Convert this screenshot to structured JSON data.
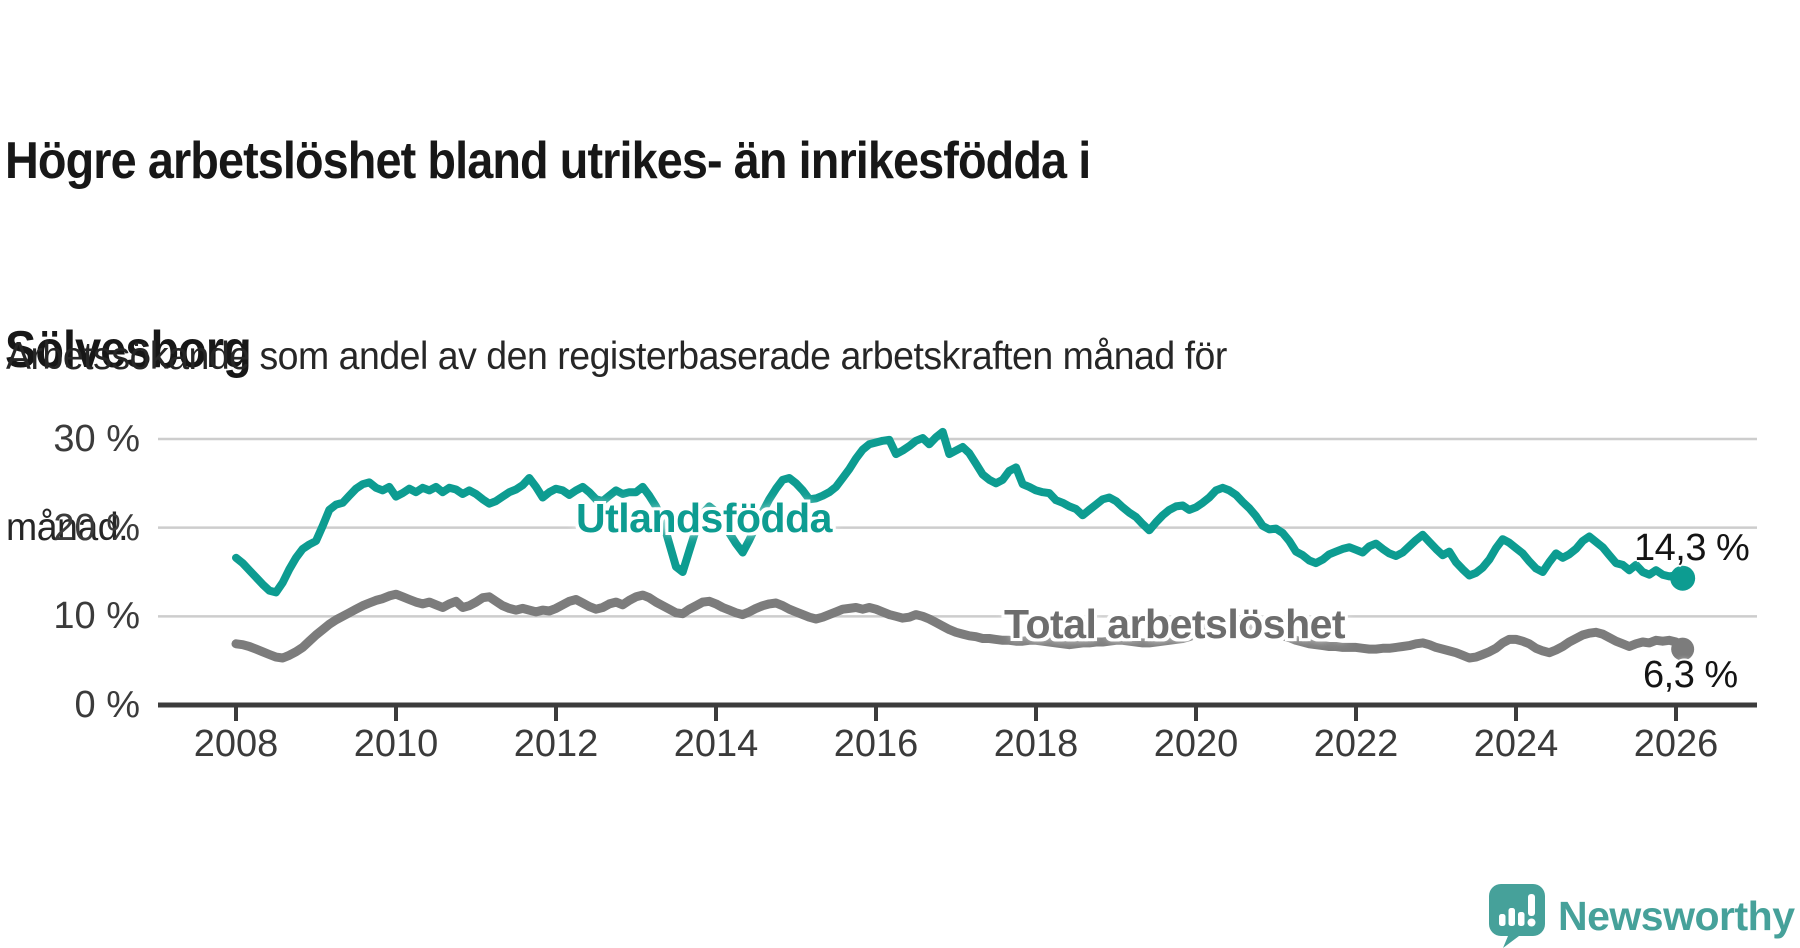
{
  "title_lines": [
    "Högre arbetslöshet bland utrikes- än inrikesfödda i",
    "Sölvesborg"
  ],
  "subtitle_lines": [
    "Arbetssökande som andel av den registerbaserade arbetskraften månad för",
    "månad."
  ],
  "branding": {
    "name": "Newsworthy",
    "color": "#46a19a",
    "icon": "speech-bubble-bar-chart-logo"
  },
  "colors": {
    "foreign_born_line": "#0d9c91",
    "total_line": "#7c7c7c",
    "total_label": "#6d6d6d",
    "grid": "#cdcdcd",
    "axis": "#3c3c3c",
    "text": "#171717"
  },
  "chart_data": {
    "type": "line",
    "title": "Högre arbetslöshet bland utrikes- än inrikesfödda i Sölvesborg",
    "subtitle": "Arbetssökande som andel av den registerbaserade arbetskraften månad för månad.",
    "x_unit": "month",
    "x_start": "2008-01",
    "x_end": "2026-02",
    "ylim": [
      0,
      32
    ],
    "grid": true,
    "legend": "inline-labels",
    "y_ticks": [
      {
        "value": 0,
        "label": "0 %"
      },
      {
        "value": 10,
        "label": "10 %"
      },
      {
        "value": 20,
        "label": "20 %"
      },
      {
        "value": 30,
        "label": "30 %"
      }
    ],
    "x_ticks": [
      {
        "value": 2008,
        "label": "2008"
      },
      {
        "value": 2010,
        "label": "2010"
      },
      {
        "value": 2012,
        "label": "2012"
      },
      {
        "value": 2014,
        "label": "2014"
      },
      {
        "value": 2016,
        "label": "2016"
      },
      {
        "value": 2018,
        "label": "2018"
      },
      {
        "value": 2020,
        "label": "2020"
      },
      {
        "value": 2022,
        "label": "2022"
      },
      {
        "value": 2024,
        "label": "2024"
      },
      {
        "value": 2026,
        "label": "2026"
      }
    ],
    "series": [
      {
        "name": "Utlandsfödda",
        "color": "#0d9c91",
        "end_label": "14,3 %",
        "end_value": 14.3,
        "values": [
          16.6,
          16.0,
          15.2,
          14.4,
          13.6,
          12.9,
          12.7,
          13.8,
          15.3,
          16.6,
          17.6,
          18.1,
          18.5,
          20.2,
          22.0,
          22.6,
          22.8,
          23.6,
          24.4,
          24.9,
          25.1,
          24.5,
          24.2,
          24.6,
          23.5,
          23.9,
          24.4,
          24.0,
          24.5,
          24.2,
          24.6,
          24.0,
          24.5,
          24.3,
          23.8,
          24.2,
          23.8,
          23.2,
          22.7,
          23.0,
          23.5,
          24.0,
          24.3,
          24.8,
          25.6,
          24.6,
          23.4,
          24.0,
          24.4,
          24.2,
          23.7,
          24.2,
          24.6,
          24.0,
          23.2,
          23.0,
          23.6,
          24.2,
          23.8,
          24.0,
          24.0,
          24.6,
          23.6,
          22.4,
          20.8,
          18.2,
          15.6,
          15.0,
          17.4,
          19.8,
          21.6,
          22.4,
          21.8,
          20.6,
          19.4,
          18.2,
          17.2,
          18.6,
          20.2,
          21.8,
          23.2,
          24.4,
          25.4,
          25.6,
          25.0,
          24.2,
          23.2,
          23.3,
          23.6,
          24.0,
          24.6,
          25.6,
          26.6,
          27.8,
          28.8,
          29.4,
          29.6,
          29.8,
          29.9,
          28.3,
          28.7,
          29.2,
          29.8,
          30.1,
          29.4,
          30.2,
          30.8,
          28.3,
          28.7,
          29.1,
          28.4,
          27.2,
          26.0,
          25.4,
          25.0,
          25.4,
          26.4,
          26.8,
          24.9,
          24.6,
          24.2,
          24.0,
          23.9,
          23.1,
          22.8,
          22.4,
          22.1,
          21.4,
          22.0,
          22.6,
          23.2,
          23.4,
          23.0,
          22.3,
          21.7,
          21.2,
          20.4,
          19.7,
          20.6,
          21.4,
          22.0,
          22.4,
          22.5,
          22.0,
          22.3,
          22.8,
          23.4,
          24.2,
          24.5,
          24.2,
          23.7,
          22.9,
          22.2,
          21.3,
          20.2,
          19.8,
          19.9,
          19.4,
          18.5,
          17.3,
          16.9,
          16.3,
          16.0,
          16.4,
          17.0,
          17.3,
          17.6,
          17.8,
          17.5,
          17.2,
          17.9,
          18.2,
          17.6,
          17.1,
          16.8,
          17.2,
          17.9,
          18.6,
          19.2,
          18.4,
          17.6,
          16.9,
          17.3,
          16.1,
          15.3,
          14.6,
          14.9,
          15.5,
          16.4,
          17.7,
          18.7,
          18.3,
          17.7,
          17.1,
          16.2,
          15.4,
          15.0,
          16.1,
          17.1,
          16.6,
          17.0,
          17.6,
          18.5,
          19.0,
          18.4,
          17.8,
          16.9,
          16.0,
          15.8,
          15.2,
          15.8,
          15.0,
          14.7,
          15.2,
          14.7,
          14.5,
          14.6,
          14.3
        ]
      },
      {
        "name": "Total arbetslöshet",
        "color": "#7c7c7c",
        "end_label": "6,3 %",
        "end_value": 6.3,
        "values": [
          6.9,
          6.8,
          6.6,
          6.3,
          6.0,
          5.7,
          5.4,
          5.3,
          5.6,
          6.0,
          6.5,
          7.2,
          7.9,
          8.5,
          9.1,
          9.6,
          10.0,
          10.4,
          10.8,
          11.2,
          11.5,
          11.8,
          12.0,
          12.3,
          12.5,
          12.2,
          11.9,
          11.6,
          11.4,
          11.6,
          11.3,
          11.0,
          11.4,
          11.7,
          11.0,
          11.2,
          11.6,
          12.1,
          12.2,
          11.7,
          11.2,
          10.9,
          10.7,
          10.9,
          10.7,
          10.5,
          10.7,
          10.6,
          10.9,
          11.3,
          11.7,
          11.9,
          11.5,
          11.1,
          10.8,
          11.0,
          11.4,
          11.6,
          11.3,
          11.8,
          12.2,
          12.4,
          12.1,
          11.6,
          11.2,
          10.8,
          10.4,
          10.3,
          10.8,
          11.2,
          11.6,
          11.7,
          11.4,
          11.0,
          10.7,
          10.4,
          10.2,
          10.5,
          10.9,
          11.2,
          11.4,
          11.5,
          11.2,
          10.8,
          10.5,
          10.2,
          9.9,
          9.7,
          9.9,
          10.2,
          10.5,
          10.8,
          10.9,
          11.0,
          10.8,
          11.0,
          10.8,
          10.5,
          10.2,
          10.0,
          9.8,
          9.9,
          10.2,
          10.0,
          9.7,
          9.3,
          8.9,
          8.5,
          8.2,
          8.0,
          7.8,
          7.7,
          7.5,
          7.5,
          7.4,
          7.3,
          7.3,
          7.2,
          7.2,
          7.3,
          7.3,
          7.2,
          7.1,
          7.0,
          6.9,
          6.8,
          6.9,
          7.0,
          7.0,
          7.1,
          7.1,
          7.2,
          7.3,
          7.3,
          7.2,
          7.1,
          7.0,
          7.0,
          7.1,
          7.2,
          7.3,
          7.4,
          7.5,
          7.7,
          8.0,
          8.3,
          8.9,
          9.3,
          9.5,
          9.4,
          9.2,
          9.0,
          8.8,
          8.6,
          8.4,
          8.2,
          8.0,
          7.8,
          7.6,
          7.3,
          7.1,
          6.9,
          6.8,
          6.7,
          6.6,
          6.6,
          6.5,
          6.5,
          6.5,
          6.4,
          6.3,
          6.3,
          6.4,
          6.4,
          6.5,
          6.6,
          6.7,
          6.9,
          7.0,
          6.8,
          6.5,
          6.3,
          6.1,
          5.9,
          5.6,
          5.3,
          5.4,
          5.7,
          6.0,
          6.4,
          7.0,
          7.4,
          7.4,
          7.2,
          6.9,
          6.4,
          6.1,
          5.9,
          6.2,
          6.6,
          7.1,
          7.5,
          7.9,
          8.1,
          8.2,
          8.0,
          7.6,
          7.2,
          6.9,
          6.6,
          6.9,
          7.1,
          7.0,
          7.3,
          7.2,
          7.3,
          7.1,
          6.3
        ]
      }
    ]
  }
}
